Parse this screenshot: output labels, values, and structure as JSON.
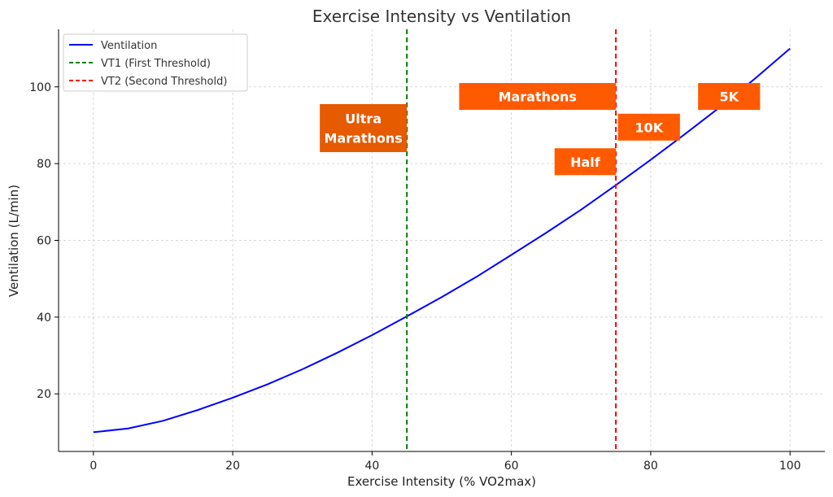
{
  "chart_data": {
    "type": "line",
    "title": "Exercise Intensity vs Ventilation",
    "xlabel": "Exercise Intensity (% VO2max)",
    "ylabel": "Ventilation (L/min)",
    "xlim": [
      -5,
      105
    ],
    "ylim": [
      5,
      115
    ],
    "xticks": [
      0,
      20,
      40,
      60,
      80,
      100
    ],
    "yticks": [
      20,
      40,
      60,
      80,
      100
    ],
    "grid": true,
    "legend_position": "top-left",
    "series": [
      {
        "name": "Ventilation",
        "color": "#0000ff",
        "x": [
          0,
          5,
          10,
          15,
          20,
          25,
          30,
          35,
          40,
          45,
          50,
          55,
          60,
          65,
          70,
          75,
          80,
          85,
          90,
          95,
          100
        ],
        "y": [
          10,
          11.0,
          13.0,
          15.8,
          19.0,
          22.5,
          26.4,
          30.7,
          35.3,
          40.2,
          45.2,
          50.5,
          56.2,
          62.0,
          68.0,
          74.4,
          81.0,
          87.8,
          94.8,
          102.2,
          110.0
        ]
      }
    ],
    "thresholds": [
      {
        "name": "VT1 (First Threshold)",
        "x": 45,
        "color": "#008000"
      },
      {
        "name": "VT2 (Second Threshold)",
        "x": 75,
        "color": "#ff0000"
      }
    ],
    "annotations": [
      {
        "lines": [
          "Ultra",
          "Marathons"
        ],
        "x0": 32.5,
        "x1": 45,
        "y0": 83,
        "y1": 95.5,
        "color": "#e65a00"
      },
      {
        "lines": [
          "Marathons"
        ],
        "x0": 52.5,
        "x1": 75,
        "y0": 94,
        "y1": 101,
        "color": "#ff5a00"
      },
      {
        "lines": [
          "10K"
        ],
        "x0": 75.3,
        "x1": 84.2,
        "y0": 86,
        "y1": 93,
        "color": "#ff5a00"
      },
      {
        "lines": [
          "Half"
        ],
        "x0": 66.2,
        "x1": 75,
        "y0": 77,
        "y1": 84,
        "color": "#ff5a00"
      },
      {
        "lines": [
          "5K"
        ],
        "x0": 86.8,
        "x1": 95.7,
        "y0": 94,
        "y1": 101,
        "color": "#ff5a00"
      }
    ]
  }
}
